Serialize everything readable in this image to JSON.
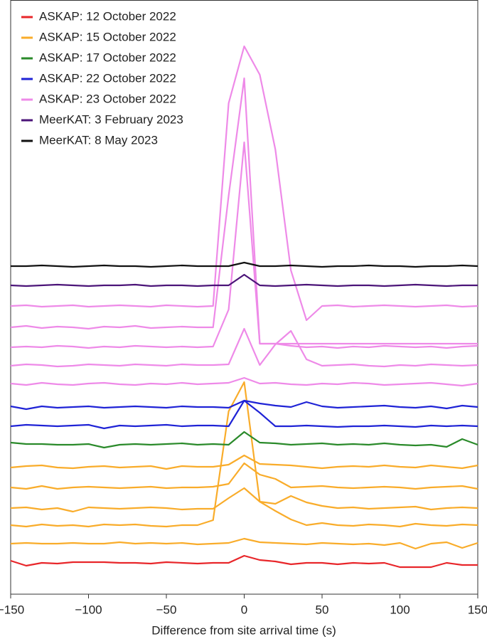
{
  "chart_data": {
    "type": "line",
    "xlabel": "Difference from site arrival time (s)",
    "x": [
      -150,
      -140,
      -130,
      -120,
      -110,
      -100,
      -90,
      -80,
      -70,
      -60,
      -50,
      -40,
      -30,
      -20,
      -10,
      0,
      10,
      20,
      30,
      40,
      50,
      60,
      70,
      80,
      90,
      100,
      110,
      120,
      130,
      140,
      150
    ],
    "xlim": [
      -150,
      150
    ],
    "xticks": [
      {
        "value": -150,
        "label": "−150"
      },
      {
        "value": -100,
        "label": "−100"
      },
      {
        "value": -50,
        "label": "−50"
      },
      0,
      50,
      100,
      150
    ],
    "ylim": [
      0,
      835
    ],
    "legend": "upper left",
    "series": [
      {
        "name": "ASKAP: 12 October 2022",
        "color": "#e8262a",
        "traces": [
          [
            47,
            40,
            44,
            43,
            45,
            45,
            45,
            44,
            44,
            43,
            45,
            44,
            43,
            44,
            44,
            54,
            48,
            46,
            42,
            44,
            44,
            42,
            44,
            43,
            44,
            38,
            38,
            38,
            44,
            41,
            41
          ]
        ]
      },
      {
        "name": "ASKAP: 15 October 2022",
        "color": "#f9ac2a",
        "traces": [
          [
            71,
            72,
            71,
            71,
            72,
            71,
            71,
            73,
            71,
            72,
            71,
            72,
            70,
            71,
            72,
            78,
            73,
            72,
            71,
            70,
            72,
            71,
            70,
            71,
            69,
            72,
            64,
            71,
            73,
            65,
            72
          ],
          [
            97,
            95,
            98,
            96,
            97,
            95,
            98,
            97,
            98,
            96,
            95,
            97,
            97,
            104,
            257,
            298,
            130,
            117,
            105,
            97,
            100,
            97,
            96,
            98,
            97,
            95,
            99,
            97,
            96,
            98,
            97
          ],
          [
            121,
            122,
            119,
            121,
            116,
            122,
            121,
            120,
            121,
            122,
            121,
            119,
            120,
            120,
            135,
            149,
            130,
            127,
            138,
            129,
            124,
            121,
            122,
            120,
            121,
            122,
            123,
            119,
            121,
            122,
            121
          ],
          [
            150,
            148,
            152,
            148,
            150,
            151,
            150,
            149,
            150,
            151,
            149,
            150,
            150,
            151,
            155,
            184,
            168,
            162,
            150,
            151,
            152,
            150,
            149,
            150,
            151,
            150,
            148,
            150,
            151,
            152,
            148
          ],
          [
            178,
            180,
            181,
            178,
            177,
            179,
            180,
            178,
            179,
            180,
            176,
            180,
            179,
            179,
            182,
            195,
            183,
            182,
            181,
            179,
            177,
            179,
            180,
            179,
            181,
            179,
            178,
            181,
            179,
            177,
            181
          ]
        ]
      },
      {
        "name": "ASKAP: 17 October 2022",
        "color": "#2a8a2a",
        "traces": [
          [
            213,
            211,
            211,
            210,
            210,
            211,
            206,
            210,
            211,
            210,
            211,
            212,
            210,
            211,
            210,
            228,
            213,
            212,
            210,
            211,
            212,
            210,
            211,
            210,
            212,
            210,
            209,
            210,
            207,
            218,
            210
          ]
        ]
      },
      {
        "name": "ASKAP: 22 October 2022",
        "color": "#1f23d6",
        "traces": [
          [
            236,
            238,
            237,
            236,
            237,
            238,
            233,
            237,
            236,
            237,
            238,
            236,
            237,
            237,
            236,
            272,
            255,
            236,
            236,
            237,
            236,
            235,
            236,
            236,
            237,
            236,
            235,
            237,
            236,
            237,
            236
          ],
          [
            264,
            260,
            264,
            262,
            263,
            264,
            262,
            263,
            264,
            263,
            262,
            264,
            263,
            263,
            262,
            272,
            268,
            265,
            263,
            270,
            264,
            262,
            263,
            264,
            265,
            263,
            262,
            264,
            261,
            265,
            263
          ]
        ]
      },
      {
        "name": "ASKAP: 23 October 2022",
        "color": "#ee8ae8",
        "traces": [
          [
            296,
            294,
            297,
            295,
            294,
            296,
            297,
            295,
            294,
            296,
            295,
            297,
            295,
            296,
            297,
            304,
            296,
            297,
            295,
            294,
            296,
            295,
            297,
            296,
            294,
            295,
            296,
            297,
            295,
            293,
            296
          ],
          [
            321,
            323,
            322,
            320,
            321,
            323,
            322,
            321,
            323,
            322,
            321,
            323,
            322,
            322,
            323,
            373,
            322,
            351,
            370,
            330,
            321,
            322,
            323,
            321,
            320,
            322,
            321,
            323,
            322,
            321,
            322
          ],
          [
            347,
            348,
            347,
            349,
            348,
            346,
            348,
            347,
            349,
            348,
            347,
            348,
            347,
            348,
            400,
            635,
            352,
            352,
            349,
            347,
            348,
            346,
            348,
            347,
            349,
            348,
            347,
            348,
            346,
            348,
            349
          ],
          [
            375,
            377,
            374,
            376,
            375,
            373,
            376,
            375,
            377,
            374,
            375,
            376,
            375,
            375,
            560,
            725,
            352,
            352,
            352,
            352,
            352,
            352,
            352,
            352,
            352,
            352,
            352,
            352,
            352,
            352,
            352
          ],
          [
            405,
            406,
            404,
            405,
            406,
            404,
            405,
            406,
            405,
            404,
            406,
            405,
            404,
            405,
            690,
            770,
            730,
            625,
            455,
            385,
            405,
            406,
            404,
            405,
            406,
            405,
            404,
            405,
            406,
            404,
            405
          ]
        ]
      },
      {
        "name": "MeerKAT: 3 February 2023",
        "color": "#4b1478",
        "traces": [
          [
            434,
            433,
            434,
            435,
            434,
            433,
            434,
            434,
            435,
            433,
            434,
            434,
            433,
            434,
            434,
            449,
            434,
            433,
            434,
            435,
            434,
            433,
            434,
            434,
            433,
            434,
            435,
            434,
            433,
            434,
            434
          ]
        ]
      },
      {
        "name": "MeerKAT: 8 May 2023",
        "color": "#111111",
        "traces": [
          [
            461,
            461,
            462,
            461,
            460,
            461,
            462,
            461,
            461,
            460,
            461,
            462,
            461,
            461,
            461,
            466,
            461,
            461,
            462,
            461,
            460,
            461,
            461,
            462,
            461,
            461,
            460,
            461,
            461,
            462,
            461
          ]
        ]
      }
    ]
  }
}
